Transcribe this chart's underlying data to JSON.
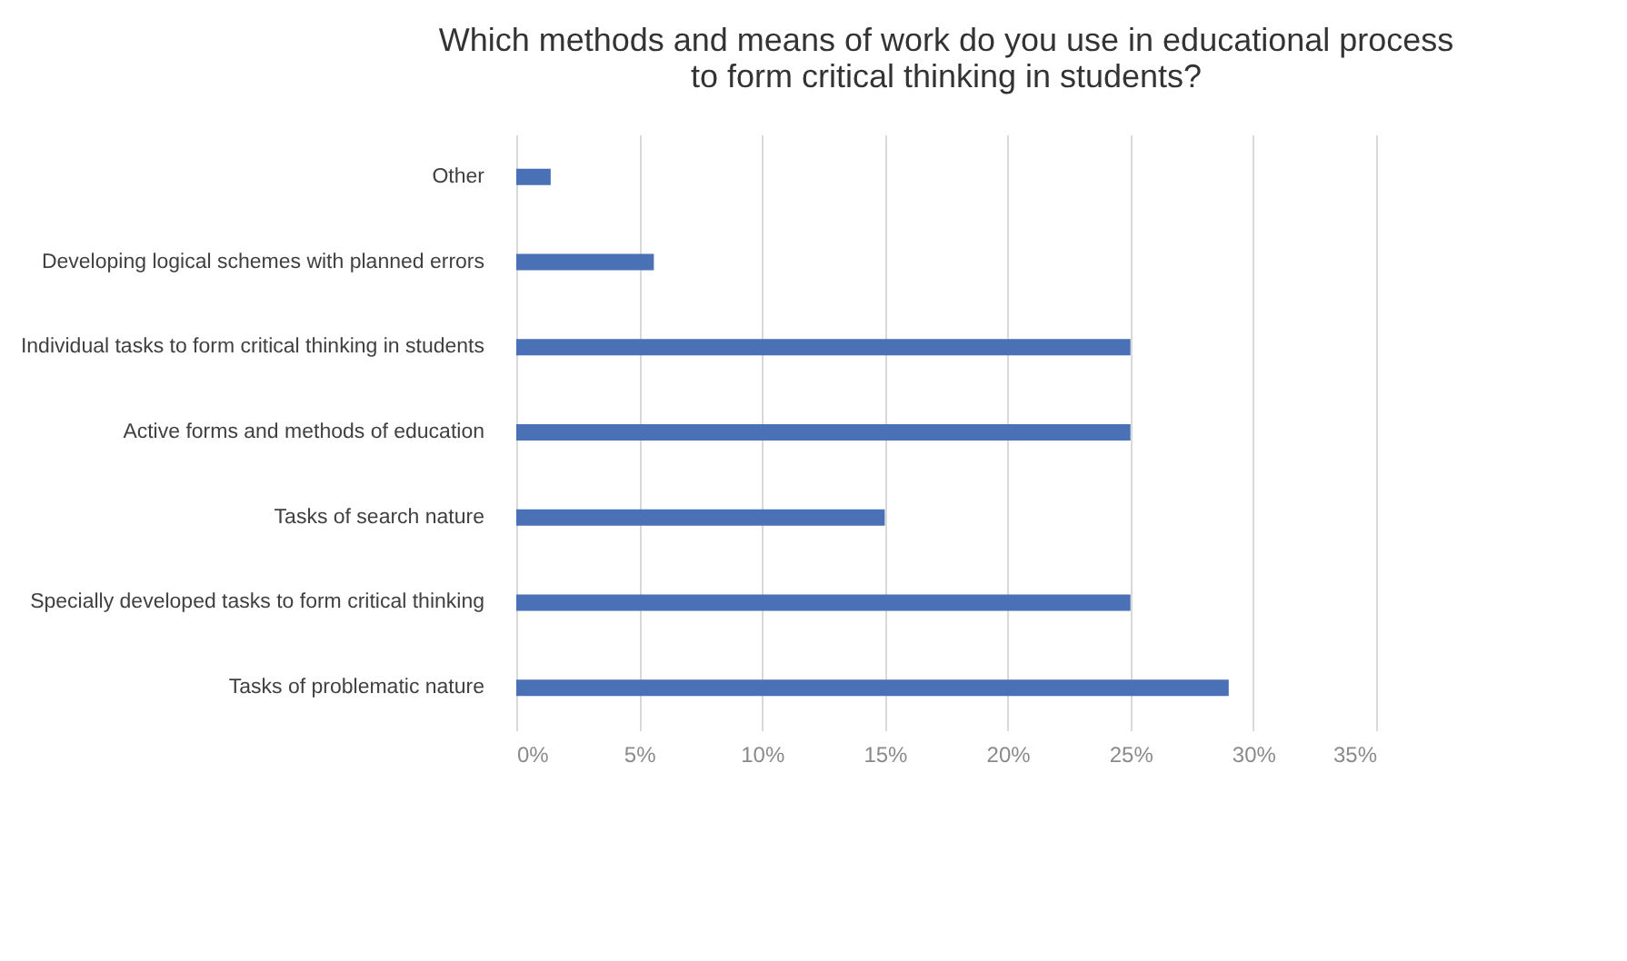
{
  "chart_data": {
    "type": "bar",
    "orientation": "horizontal",
    "title": [
      "Which methods and means of work do you use in educational process",
      "to form critical thinking in students?"
    ],
    "categories": [
      "Other",
      "Developing logical schemes with planned errors",
      "Individual tasks to form critical thinking in students",
      "Active forms and methods of education",
      "Tasks of search nature",
      "Specially developed tasks to form critical thinking",
      "Tasks of problematic nature"
    ],
    "values": [
      1.4,
      5.6,
      25,
      25,
      15,
      25,
      29
    ],
    "color": "#4a71b6",
    "xlim": [
      0,
      35
    ],
    "xticks": [
      {
        "value": 0,
        "label": "0%"
      },
      {
        "value": 5,
        "label": "5%"
      },
      {
        "value": 10,
        "label": "10%"
      },
      {
        "value": 15,
        "label": "15%"
      },
      {
        "value": 20,
        "label": "20%"
      },
      {
        "value": 25,
        "label": "25%"
      },
      {
        "value": 30,
        "label": "30%"
      },
      {
        "value": 35,
        "label": "35%"
      }
    ],
    "grid": "x"
  }
}
